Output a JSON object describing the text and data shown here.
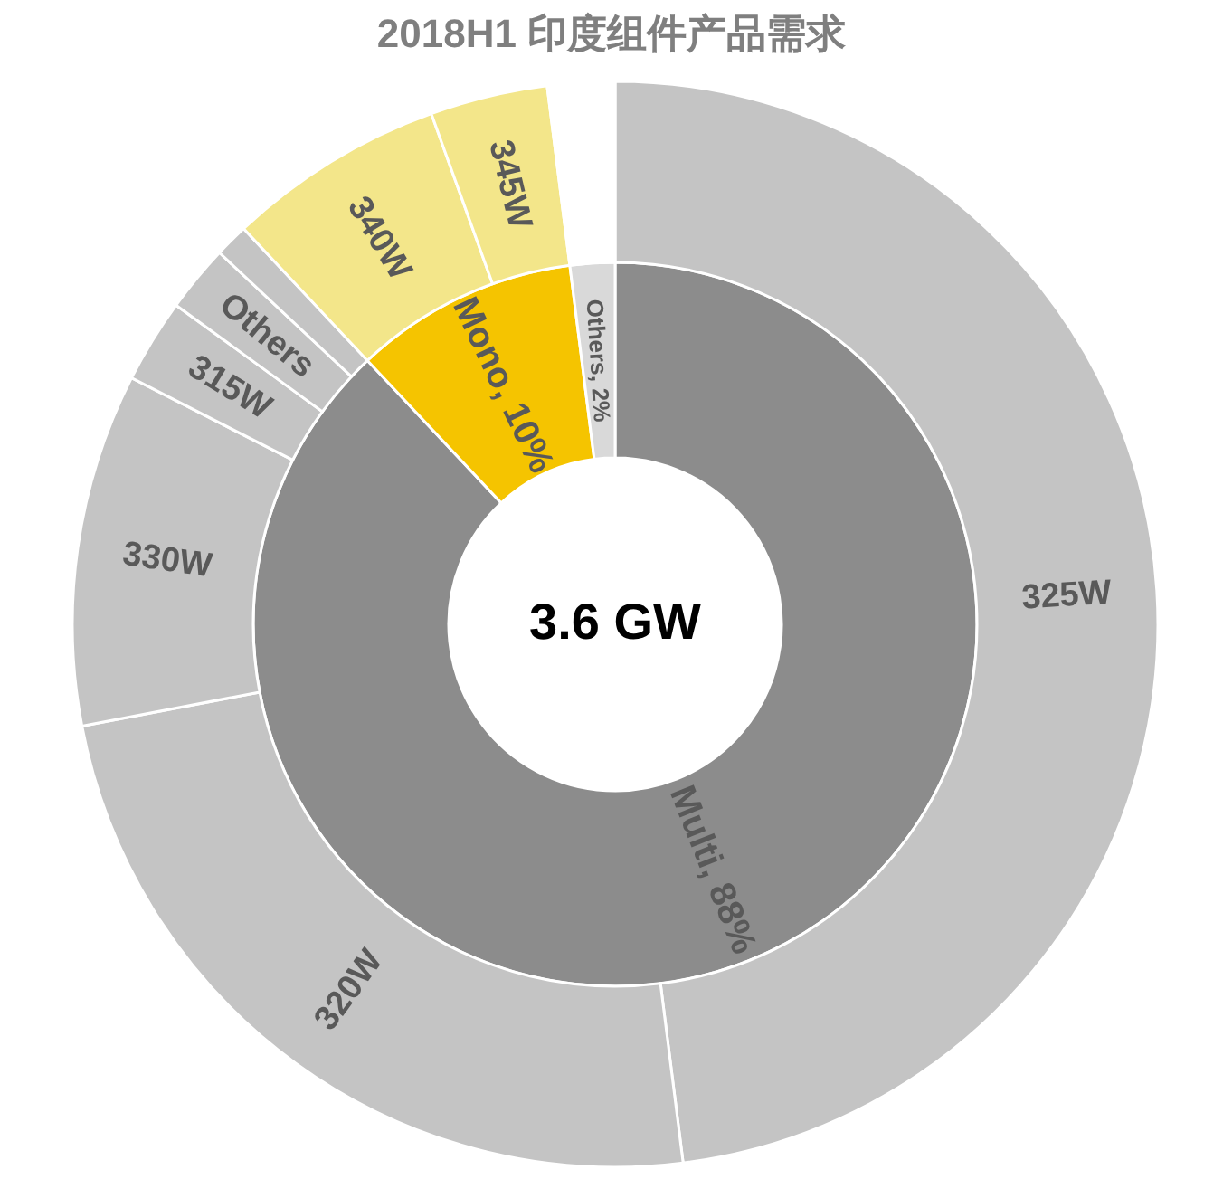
{
  "chart_data": [
    {
      "type": "donut",
      "title": "2018H1  印度组件产品需求",
      "categories": [
        "Multi",
        "Mono",
        "Others"
      ],
      "values": [
        88,
        10,
        2
      ],
      "value_labels": [
        "88%",
        "10%",
        "2%"
      ],
      "colors": [
        "#8c8c8c",
        "#f5c400",
        "#d9d9d9"
      ],
      "annotations": [
        "3.6 GW"
      ]
    },
    {
      "type": "donut",
      "categories": [
        "325W",
        "320W",
        "330W",
        "315W",
        "Others",
        null,
        "340W",
        "345W",
        null
      ],
      "values": [
        48,
        24,
        10.5,
        2.5,
        2,
        1,
        6.5,
        3.5,
        2
      ],
      "colors": [
        "#c4c4c4",
        "#c4c4c4",
        "#c4c4c4",
        "#c4c4c4",
        "#c4c4c4",
        "#c4c4c4",
        "#f3e68a",
        "#f3e68a",
        "#ffffff"
      ],
      "data_labels": false
    }
  ]
}
